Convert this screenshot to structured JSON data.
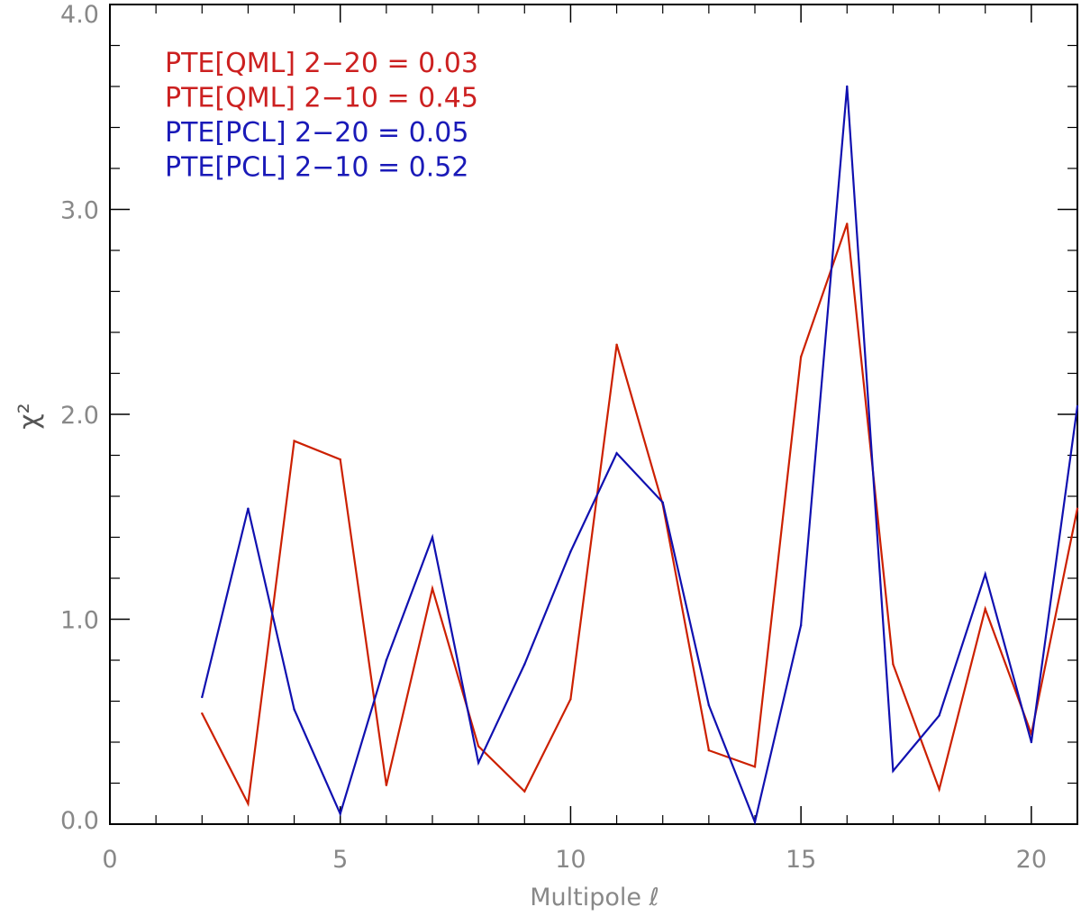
{
  "chart_data": {
    "type": "line",
    "xlabel": "Multipole ℓ",
    "ylabel": "χ²",
    "xlim": [
      0,
      21
    ],
    "ylim": [
      0,
      4
    ],
    "x_ticks": [
      0,
      5,
      10,
      15,
      20
    ],
    "x_tick_labels": [
      "0",
      "5",
      "10",
      "15",
      "20"
    ],
    "y_ticks": [
      0,
      1,
      2,
      3,
      4
    ],
    "y_tick_labels": [
      "0.0",
      "1.0",
      "2.0",
      "3.0",
      "4.0"
    ],
    "grid": false,
    "annotations": [
      {
        "text": "PTE[QML] 2−20 = 0.03",
        "color": "#cc2020"
      },
      {
        "text": "PTE[QML] 2−10 = 0.45",
        "color": "#cc2020"
      },
      {
        "text": "PTE[PCL] 2−20 = 0.05",
        "color": "#1a1ab8"
      },
      {
        "text": "PTE[PCL] 2−10 = 0.52",
        "color": "#1a1ab8"
      }
    ],
    "series": [
      {
        "color": "#cc2000",
        "x": [
          2,
          3,
          4,
          5,
          6,
          7,
          8,
          9,
          10,
          11,
          12,
          13,
          14,
          15,
          16,
          17,
          18,
          19,
          20,
          21
        ],
        "values": [
          0.54,
          0.1,
          1.87,
          1.78,
          0.19,
          1.15,
          0.38,
          0.16,
          0.61,
          2.34,
          1.56,
          0.36,
          0.28,
          2.28,
          2.93,
          0.78,
          0.17,
          1.05,
          0.44,
          1.54
        ]
      },
      {
        "color": "#1010b0",
        "x": [
          2,
          3,
          4,
          5,
          6,
          7,
          8,
          9,
          10,
          11,
          12,
          13,
          14,
          15,
          16,
          17,
          18,
          19,
          20,
          21
        ],
        "values": [
          0.62,
          1.54,
          0.56,
          0.05,
          0.8,
          1.4,
          0.3,
          0.78,
          1.33,
          1.81,
          1.57,
          0.58,
          0.01,
          0.97,
          3.6,
          0.26,
          0.53,
          1.22,
          0.4,
          2.04
        ]
      }
    ]
  }
}
